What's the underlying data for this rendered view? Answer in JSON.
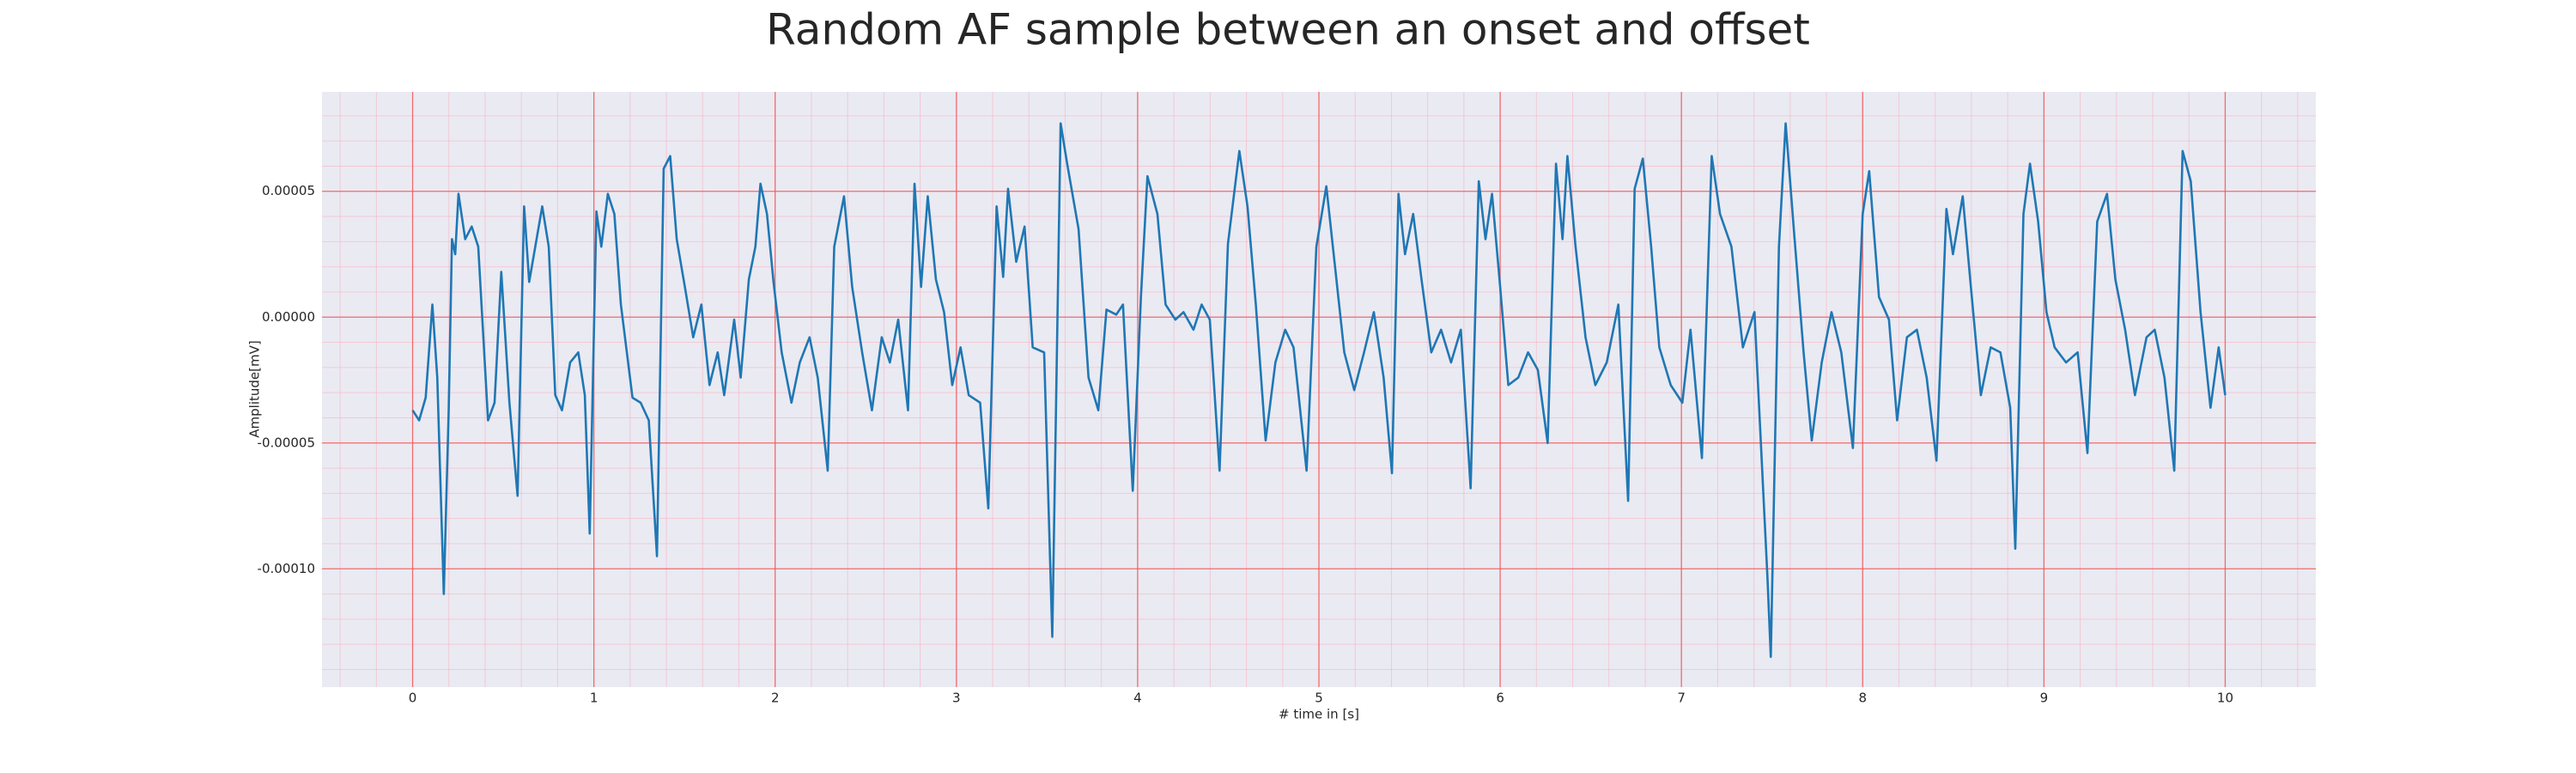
{
  "chart_data": {
    "type": "line",
    "title": "Random AF sample between an onset and offset",
    "xlabel": "# time in [s]",
    "ylabel": "Amplitude[mV]",
    "color": "#1f77b4",
    "grid": true,
    "minor_grid": true,
    "xlim": [
      -0.5,
      10.5
    ],
    "ylim": [
      -0.000147,
      8.95e-05
    ],
    "xticks": [
      0,
      1,
      2,
      3,
      4,
      5,
      6,
      7,
      8,
      9,
      10
    ],
    "yticks": [
      {
        "value": -0.0001,
        "label": "-0.00010"
      },
      {
        "value": -5e-05,
        "label": "-0.00005"
      },
      {
        "value": 0,
        "label": "0.00000"
      },
      {
        "value": 5e-05,
        "label": "0.00005"
      }
    ],
    "x": [
      0,
      0.036,
      0.072,
      0.109,
      0.136,
      0.172,
      0.199,
      0.217,
      0.235,
      0.253,
      0.29,
      0.326,
      0.362,
      0.416,
      0.452,
      0.489,
      0.534,
      0.579,
      0.615,
      0.643,
      0.715,
      0.751,
      0.787,
      0.824,
      0.869,
      0.914,
      0.95,
      0.977,
      1.014,
      1.041,
      1.077,
      1.113,
      1.149,
      1.213,
      1.258,
      1.303,
      1.348,
      1.385,
      1.421,
      1.457,
      1.502,
      1.548,
      1.593,
      1.638,
      1.683,
      1.719,
      1.774,
      1.81,
      1.855,
      1.891,
      1.919,
      1.955,
      1.991,
      2.036,
      2.09,
      2.136,
      2.19,
      2.235,
      2.29,
      2.326,
      2.38,
      2.425,
      2.48,
      2.534,
      2.588,
      2.633,
      2.679,
      2.733,
      2.769,
      2.805,
      2.842,
      2.887,
      2.932,
      2.977,
      3.023,
      3.068,
      3.131,
      3.176,
      3.222,
      3.258,
      3.285,
      3.33,
      3.376,
      3.421,
      3.484,
      3.529,
      3.575,
      3.611,
      3.674,
      3.729,
      3.783,
      3.828,
      3.882,
      3.919,
      3.973,
      4.018,
      4.054,
      4.109,
      4.154,
      4.208,
      4.253,
      4.308,
      4.353,
      4.398,
      4.452,
      4.498,
      4.561,
      4.606,
      4.652,
      4.706,
      4.76,
      4.814,
      4.86,
      4.932,
      4.986,
      5.041,
      5.086,
      5.14,
      5.195,
      5.249,
      5.303,
      5.357,
      5.403,
      5.439,
      5.475,
      5.52,
      5.566,
      5.62,
      5.674,
      5.729,
      5.783,
      5.837,
      5.882,
      5.919,
      5.955,
      6.0,
      6.045,
      6.1,
      6.154,
      6.208,
      6.262,
      6.308,
      6.344,
      6.371,
      6.416,
      6.471,
      6.525,
      6.588,
      6.652,
      6.706,
      6.742,
      6.787,
      6.833,
      6.878,
      6.941,
      7.005,
      7.05,
      7.113,
      7.167,
      7.213,
      7.276,
      7.339,
      7.403,
      7.475,
      7.493,
      7.538,
      7.575,
      7.62,
      7.674,
      7.719,
      7.774,
      7.828,
      7.882,
      7.946,
      8.0,
      8.036,
      8.09,
      8.145,
      8.19,
      8.244,
      8.299,
      8.353,
      8.407,
      8.462,
      8.498,
      8.552,
      8.597,
      8.652,
      8.706,
      8.76,
      8.814,
      8.842,
      8.887,
      8.923,
      8.968,
      9.014,
      9.059,
      9.122,
      9.186,
      9.24,
      9.294,
      9.348,
      9.394,
      9.448,
      9.502,
      9.566,
      9.611,
      9.665,
      9.719,
      9.765,
      9.81,
      9.864,
      9.919,
      9.964,
      10.0
    ],
    "values": [
      -3.7e-05,
      -4.1e-05,
      -3.2e-05,
      5e-06,
      -2.4e-05,
      -0.00011,
      -3.7e-05,
      3.1e-05,
      2.5e-05,
      4.9e-05,
      3.1e-05,
      3.6e-05,
      2.8e-05,
      -4.1e-05,
      -3.4e-05,
      1.8e-05,
      -3.4e-05,
      -7.1e-05,
      4.4e-05,
      1.4e-05,
      4.4e-05,
      2.8e-05,
      -3.1e-05,
      -3.7e-05,
      -1.8e-05,
      -1.4e-05,
      -3.1e-05,
      -8.6e-05,
      4.2e-05,
      2.8e-05,
      4.9e-05,
      4.1e-05,
      5e-06,
      -3.2e-05,
      -3.4e-05,
      -4.1e-05,
      -9.5e-05,
      5.9e-05,
      6.4e-05,
      3.1e-05,
      1.2e-05,
      -8e-06,
      5e-06,
      -2.7e-05,
      -1.4e-05,
      -3.1e-05,
      -1e-06,
      -2.4e-05,
      1.5e-05,
      2.8e-05,
      5.3e-05,
      4.1e-05,
      1.4e-05,
      -1.4e-05,
      -3.4e-05,
      -1.8e-05,
      -8e-06,
      -2.4e-05,
      -6.1e-05,
      2.8e-05,
      4.8e-05,
      1.2e-05,
      -1.4e-05,
      -3.7e-05,
      -8e-06,
      -1.8e-05,
      -1e-06,
      -3.7e-05,
      5.3e-05,
      1.2e-05,
      4.8e-05,
      1.5e-05,
      2e-06,
      -2.7e-05,
      -1.2e-05,
      -3.1e-05,
      -3.4e-05,
      -7.6e-05,
      4.4e-05,
      1.6e-05,
      5.1e-05,
      2.2e-05,
      3.6e-05,
      -1.2e-05,
      -1.4e-05,
      -0.000127,
      7.7e-05,
      6.1e-05,
      3.5e-05,
      -2.4e-05,
      -3.7e-05,
      3e-06,
      1e-06,
      5e-06,
      -6.9e-05,
      8e-06,
      5.6e-05,
      4.1e-05,
      5e-06,
      -1e-06,
      2e-06,
      -5e-06,
      5e-06,
      -1e-06,
      -6.1e-05,
      2.9e-05,
      6.6e-05,
      4.4e-05,
      5e-06,
      -4.9e-05,
      -1.8e-05,
      -5e-06,
      -1.2e-05,
      -6.1e-05,
      2.8e-05,
      5.2e-05,
      2.2e-05,
      -1.4e-05,
      -2.9e-05,
      -1.4e-05,
      2e-06,
      -2.4e-05,
      -6.2e-05,
      4.9e-05,
      2.5e-05,
      4.1e-05,
      1.5e-05,
      -1.4e-05,
      -5e-06,
      -1.8e-05,
      -5e-06,
      -6.8e-05,
      5.4e-05,
      3.1e-05,
      4.9e-05,
      1.2e-05,
      -2.7e-05,
      -2.4e-05,
      -1.4e-05,
      -2.1e-05,
      -5e-05,
      6.1e-05,
      3.1e-05,
      6.4e-05,
      2.8e-05,
      -8e-06,
      -2.7e-05,
      -1.8e-05,
      5e-06,
      -7.3e-05,
      5.1e-05,
      6.3e-05,
      2.8e-05,
      -1.2e-05,
      -2.7e-05,
      -3.4e-05,
      -5e-06,
      -5.6e-05,
      6.4e-05,
      4.1e-05,
      2.8e-05,
      -1.2e-05,
      2e-06,
      -0.000104,
      -0.000135,
      2.8e-05,
      7.7e-05,
      3.5e-05,
      -1.4e-05,
      -4.9e-05,
      -1.8e-05,
      2e-06,
      -1.4e-05,
      -5.2e-05,
      4.1e-05,
      5.8e-05,
      8e-06,
      -1e-06,
      -4.1e-05,
      -8e-06,
      -5e-06,
      -2.4e-05,
      -5.7e-05,
      4.3e-05,
      2.5e-05,
      4.8e-05,
      1.2e-05,
      -3.1e-05,
      -1.2e-05,
      -1.4e-05,
      -3.6e-05,
      -9.2e-05,
      4.1e-05,
      6.1e-05,
      3.8e-05,
      2e-06,
      -1.2e-05,
      -1.8e-05,
      -1.4e-05,
      -5.4e-05,
      3.8e-05,
      4.9e-05,
      1.5e-05,
      -5e-06,
      -3.1e-05,
      -8e-06,
      -5e-06,
      -2.4e-05,
      -6.1e-05,
      6.6e-05,
      5.4e-05,
      2e-06,
      -3.6e-05,
      -1.2e-05,
      -3.1e-05
    ]
  }
}
